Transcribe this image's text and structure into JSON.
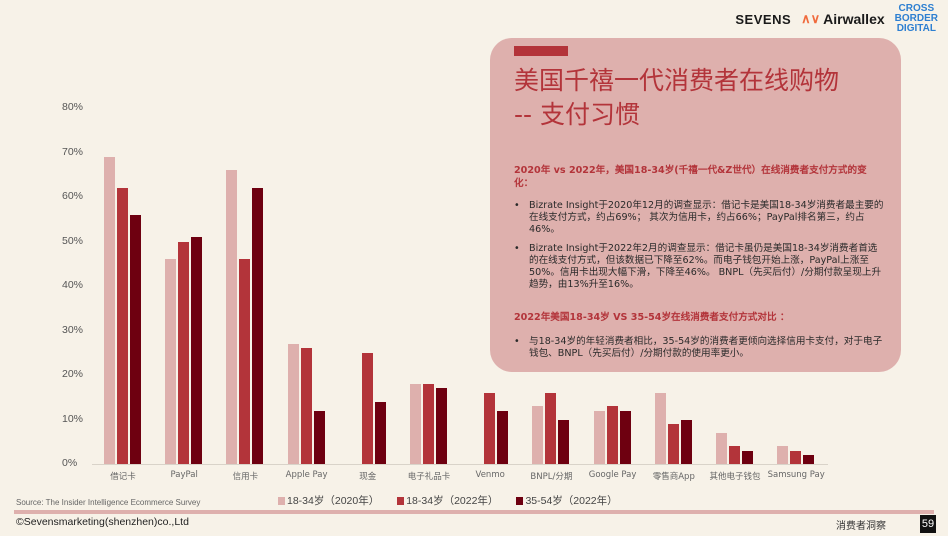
{
  "header": {
    "logos": {
      "sevens": "SEVENS",
      "airwallex": "Airwallex",
      "cbd_line1": "CROSS",
      "cbd_line2": "BORDER",
      "cbd_line3": "DIGITAL"
    }
  },
  "panel": {
    "title_line1": "美国千禧一代消费者在线购物",
    "title_line2": "-- 支付习惯",
    "section1_heading": "2020年 vs 2022年，美国18-34岁(千禧一代&Z世代）在线消费者支付方式的变化：",
    "section1_bullets": [
      "Bizrate Insight于2020年12月的调查显示：借记卡是美国18-34岁消费者最主要的在线支付方式，约占69%； 其次为信用卡，约占66%；PayPal排名第三，约占46%。",
      "Bizrate Insight于2022年2月的调查显示：借记卡虽仍是美国18-34岁消费者首选的在线支付方式，但该数据已下降至62%。而电子钱包开始上涨，PayPal上涨至50%。信用卡出现大幅下滑，下降至46%。 BNPL（先买后付）/分期付款呈现上升趋势，由13%升至16%。"
    ],
    "section2_heading": "2022年美国18-34岁 VS 35-54岁在线消费者支付方式对比 ：",
    "section2_bullets": [
      "与18-34岁的年轻消费者相比，35-54岁的消费者更倾向选择信用卡支付，对于电子钱包、BNPL（先买后付）/分期付款的使用率更小。"
    ]
  },
  "chart_data": {
    "type": "bar",
    "title": "",
    "xlabel": "",
    "ylabel": "",
    "ylim": [
      0,
      80
    ],
    "yticks": [
      "0%",
      "10%",
      "20%",
      "30%",
      "40%",
      "50%",
      "60%",
      "70%",
      "80%"
    ],
    "grid": false,
    "legend_position": "bottom",
    "categories": [
      "借记卡",
      "PayPal",
      "信用卡",
      "Apple Pay",
      "现金",
      "电子礼品卡",
      "Venmo",
      "BNPL/分期",
      "Google Pay",
      "零售商App",
      "其他电子钱包",
      "Samsung Pay"
    ],
    "series": [
      {
        "name": "18-34岁（2020年）",
        "color": "#deb0ad",
        "values": [
          69,
          46,
          66,
          27,
          0,
          18,
          0,
          13,
          12,
          16,
          7,
          4
        ]
      },
      {
        "name": "18-34岁（2022年）",
        "color": "#b3343a",
        "values": [
          62,
          50,
          46,
          26,
          25,
          18,
          16,
          16,
          13,
          9,
          4,
          3
        ]
      },
      {
        "name": "35-54岁（2022年）",
        "color": "#6e0010",
        "values": [
          56,
          51,
          62,
          12,
          14,
          17,
          12,
          10,
          12,
          10,
          3,
          2
        ]
      }
    ]
  },
  "footer": {
    "source": "Source:  The Insider Intelligence Ecommerce Survey",
    "copyright": "©Sevensmarketing(shenzhen)co.,Ltd",
    "section_label": "消费者洞察",
    "page_number": "59"
  }
}
